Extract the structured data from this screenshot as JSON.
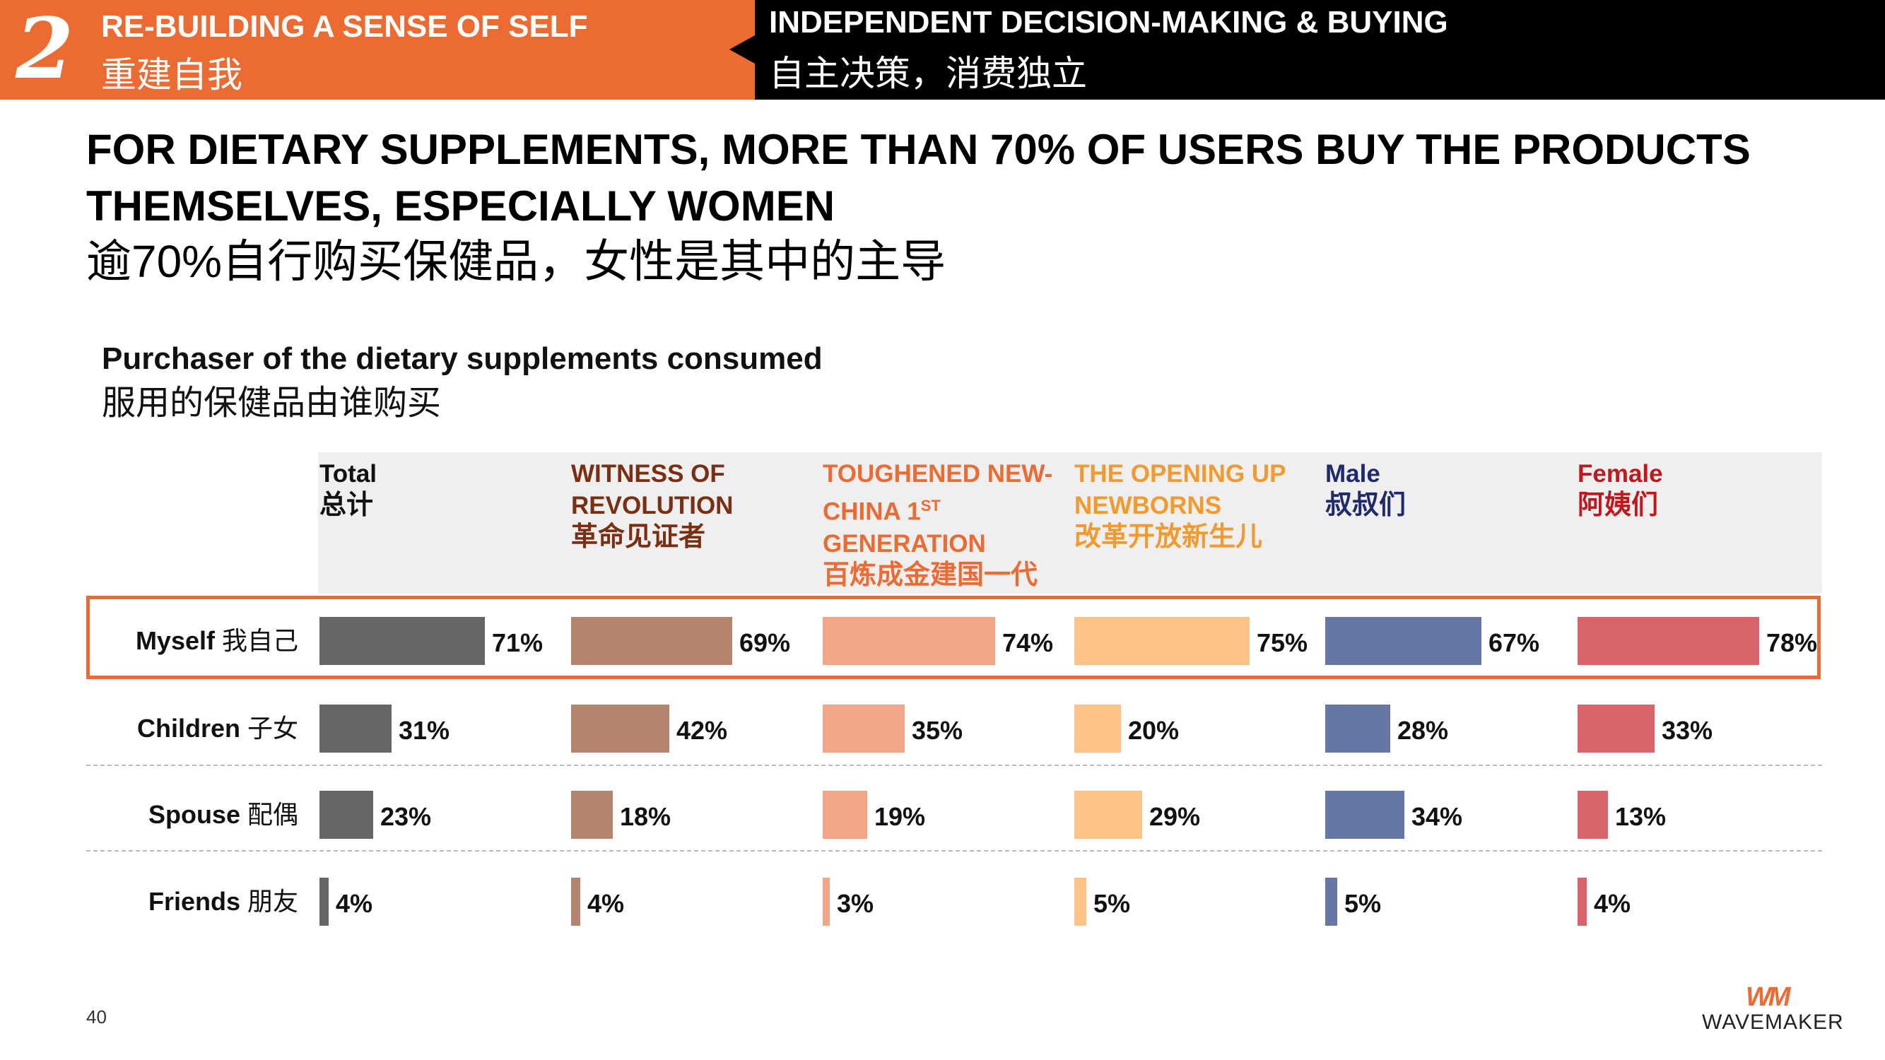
{
  "topbar": {
    "section_number": "2",
    "left_title_en": "RE-BUILDING A SENSE OF SELF",
    "left_title_zh": "重建自我",
    "right_title_en": "INDEPENDENT DECISION-MAKING & BUYING",
    "right_title_zh": "自主决策，消费独立",
    "colors": {
      "left_bg": "#EC6B33",
      "right_bg": "#000000"
    }
  },
  "headline": {
    "line1": "FOR DIETARY SUPPLEMENTS, MORE THAN 70% OF USERS BUY THE PRODUCTS",
    "line2": "THEMSELVES, ESPECIALLY WOMEN",
    "zh": "逾70%自行购买保健品，女性是其中的主导"
  },
  "chart_data": {
    "type": "bar",
    "orientation": "horizontal",
    "title": "Purchaser of the dietary supplements consumed",
    "title_zh": "服用的保健品由谁购买",
    "value_suffix": "%",
    "categories": [
      {
        "en": "Myself",
        "zh": "我自己",
        "highlighted": true
      },
      {
        "en": "Children",
        "zh": "子女",
        "highlighted": false
      },
      {
        "en": "Spouse",
        "zh": "配偶",
        "highlighted": false
      },
      {
        "en": "Friends",
        "zh": "朋友",
        "highlighted": false
      }
    ],
    "series": [
      {
        "name": "Total",
        "name_zh": "总计",
        "color": "#666666",
        "label_color": "#111111",
        "values": [
          71,
          31,
          23,
          4
        ]
      },
      {
        "name": "WITNESS OF REVOLUTION",
        "name_lines": [
          "WITNESS OF",
          "REVOLUTION"
        ],
        "name_zh": "革命见证者",
        "color": "#B5846E",
        "label_color": "#7A2E12",
        "values": [
          69,
          42,
          18,
          4
        ]
      },
      {
        "name": "TOUGHENED NEW-CHINA 1ST GENERATION",
        "name_lines": [
          "TOUGHENED NEW-",
          "CHINA 1",
          "GENERATION"
        ],
        "name_sup": "ST",
        "name_zh": "百炼成金建国一代",
        "color": "#F2A688",
        "label_color": "#EC6B33",
        "values": [
          74,
          35,
          19,
          3
        ]
      },
      {
        "name": "THE OPENING UP NEWBORNS",
        "name_lines": [
          "THE OPENING UP",
          "NEWBORNS"
        ],
        "name_zh": "改革开放新生儿",
        "color": "#FDC386",
        "label_color": "#F39A2E",
        "values": [
          75,
          20,
          29,
          5
        ]
      },
      {
        "name": "Male",
        "name_zh": "叔叔们",
        "color": "#6677A3",
        "label_color": "#1F2A6B",
        "values": [
          67,
          28,
          34,
          5
        ]
      },
      {
        "name": "Female",
        "name_zh": "阿姨们",
        "color": "#D9636A",
        "label_color": "#C0181E",
        "values": [
          78,
          33,
          13,
          4
        ]
      }
    ]
  },
  "footer": {
    "page_number": "40",
    "logo_mark": "WM",
    "logo_text": "WAVEMAKER"
  }
}
